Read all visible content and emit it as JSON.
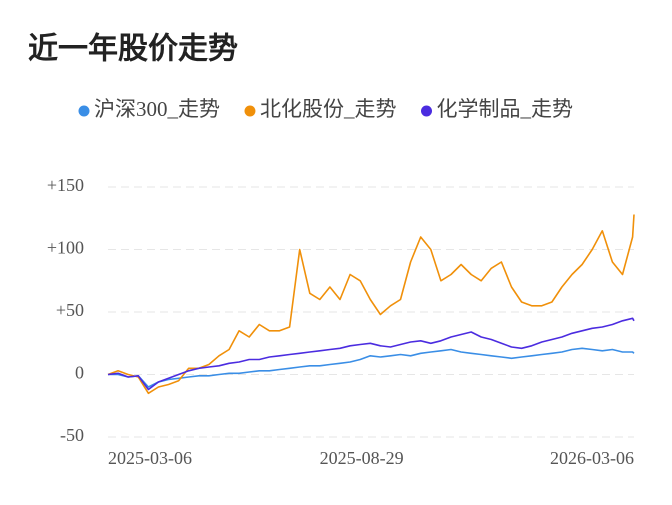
{
  "chart_data": {
    "type": "line",
    "title": "近一年股价走势",
    "x": [
      "2025-03-06",
      "2025-03-13",
      "2025-03-20",
      "2025-03-27",
      "2025-04-03",
      "2025-04-10",
      "2025-04-17",
      "2025-04-24",
      "2025-05-01",
      "2025-05-08",
      "2025-05-15",
      "2025-05-22",
      "2025-05-29",
      "2025-06-05",
      "2025-06-12",
      "2025-06-19",
      "2025-06-26",
      "2025-07-03",
      "2025-07-10",
      "2025-07-17",
      "2025-07-24",
      "2025-07-31",
      "2025-08-07",
      "2025-08-14",
      "2025-08-21",
      "2025-08-28",
      "2025-09-04",
      "2025-09-11",
      "2025-09-18",
      "2025-09-25",
      "2025-10-02",
      "2025-10-09",
      "2025-10-16",
      "2025-10-23",
      "2025-10-30",
      "2025-11-06",
      "2025-11-13",
      "2025-11-20",
      "2025-11-27",
      "2025-12-04",
      "2025-12-11",
      "2025-12-18",
      "2025-12-25",
      "2026-01-01",
      "2026-01-08",
      "2026-01-15",
      "2026-01-22",
      "2026-01-29",
      "2026-02-05",
      "2026-02-12",
      "2026-02-19",
      "2026-02-26",
      "2026-03-05",
      "2026-03-06"
    ],
    "series": [
      {
        "name": "沪深300_走势",
        "color": "#3a8ee6",
        "values": [
          0,
          0,
          -2,
          -1,
          -10,
          -6,
          -4,
          -3,
          -2,
          -1,
          -1,
          0,
          1,
          1,
          2,
          3,
          3,
          4,
          5,
          6,
          7,
          7,
          8,
          9,
          10,
          12,
          15,
          14,
          15,
          16,
          15,
          17,
          18,
          19,
          20,
          18,
          17,
          16,
          15,
          14,
          13,
          14,
          15,
          16,
          17,
          18,
          20,
          21,
          20,
          19,
          20,
          18,
          18,
          17
        ]
      },
      {
        "name": "北化股份_走势",
        "color": "#f0900a",
        "values": [
          0,
          3,
          0,
          -2,
          -15,
          -10,
          -8,
          -5,
          5,
          5,
          8,
          15,
          20,
          35,
          30,
          40,
          35,
          35,
          38,
          100,
          65,
          60,
          70,
          60,
          80,
          75,
          60,
          48,
          55,
          60,
          90,
          110,
          100,
          75,
          80,
          88,
          80,
          75,
          85,
          90,
          70,
          58,
          55,
          55,
          58,
          70,
          80,
          88,
          100,
          115,
          90,
          80,
          110,
          128
        ]
      },
      {
        "name": "化学制品_走势",
        "color": "#4b2ce0",
        "values": [
          0,
          1,
          -2,
          -1,
          -12,
          -6,
          -3,
          0,
          3,
          5,
          6,
          7,
          9,
          10,
          12,
          12,
          14,
          15,
          16,
          17,
          18,
          19,
          20,
          21,
          23,
          24,
          25,
          23,
          22,
          24,
          26,
          27,
          25,
          27,
          30,
          32,
          34,
          30,
          28,
          25,
          22,
          21,
          23,
          26,
          28,
          30,
          33,
          35,
          37,
          38,
          40,
          43,
          45,
          43
        ]
      }
    ],
    "xlim": [
      "2025-03-06",
      "2026-03-06"
    ],
    "xticks": [
      "2025-03-06",
      "2025-08-29",
      "2026-03-06"
    ],
    "ylim": [
      -50,
      150
    ],
    "yticks": [
      {
        "value": 150,
        "label": "+150"
      },
      {
        "value": 100,
        "label": "+100"
      },
      {
        "value": 50,
        "label": "+50"
      },
      0,
      -50
    ],
    "grid": true
  }
}
